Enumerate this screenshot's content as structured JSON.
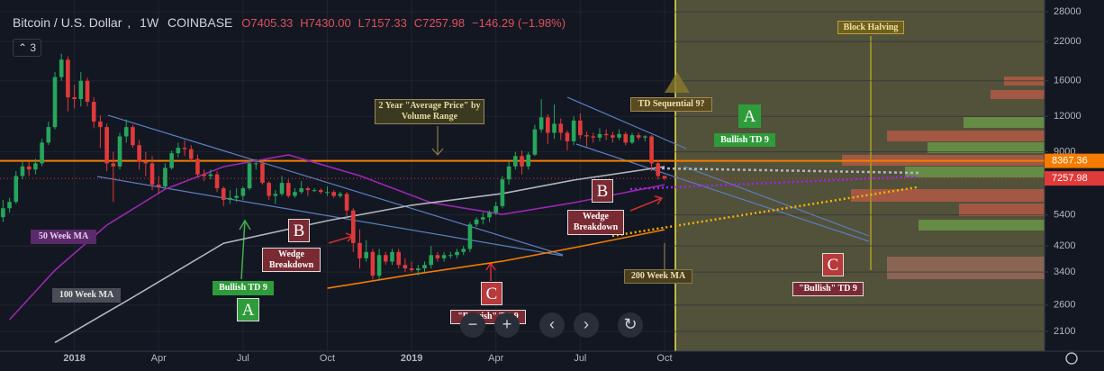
{
  "chart_data": {
    "type": "candlestick",
    "title": "Bitcoin / U.S. Dollar",
    "interval": "1W",
    "exchange": "COINBASE",
    "legend_values": [
      "O7405.33",
      "H7430.00",
      "L7157.33",
      "C7257.98",
      "−146.29 (−1.98%)"
    ],
    "indicator_count": "3",
    "log_scale": true,
    "grid": true,
    "up_color": "#26a65b",
    "down_color": "#e03a3a",
    "xlim": [
      -0.47,
      160.6
    ],
    "ylim": [
      1790,
      30800
    ],
    "xticks": [
      {
        "value": 11,
        "label": "2018"
      },
      {
        "value": 24,
        "label": "Apr"
      },
      {
        "value": 37,
        "label": "Jul"
      },
      {
        "value": 50,
        "label": "Oct"
      },
      {
        "value": 63,
        "label": "2019"
      },
      {
        "value": 76,
        "label": "Apr"
      },
      {
        "value": 89,
        "label": "Jul"
      },
      {
        "value": 102,
        "label": "Oct"
      }
    ],
    "yticks": [
      2100,
      2600,
      3400,
      4200,
      5400,
      9000,
      12000,
      16000,
      22000,
      28000
    ],
    "candles": {
      "open": [
        5300,
        5700,
        6000,
        7400,
        8000,
        7800,
        8200,
        9700,
        11000,
        16500,
        19000,
        14000,
        13800,
        16000,
        13500,
        11500,
        11000,
        8200,
        8000,
        10200,
        11000,
        9500,
        8300,
        8200,
        6900,
        6800,
        7900,
        8900,
        9300,
        9200,
        8500,
        7500,
        7400,
        7500,
        6700,
        6100,
        6200,
        6300,
        6700,
        8200,
        8200,
        7000,
        6300,
        6400,
        7000,
        6300,
        6500,
        6700,
        6600,
        6600,
        6500,
        6500,
        6300,
        6400,
        5600,
        4300,
        3800,
        4000,
        3300,
        3900,
        3700,
        4000,
        3600,
        3500,
        3450,
        3500,
        3600,
        3900,
        3800,
        3900,
        3900,
        4000,
        4100,
        5000,
        5200,
        5300,
        5500,
        5800,
        7200,
        8000,
        8700,
        8000,
        8800,
        10800,
        11900,
        10500,
        11300,
        10500,
        9800,
        11600,
        10300,
        10200,
        10100,
        10400,
        10300,
        10100,
        10400,
        9700,
        10300,
        10100,
        10200,
        8200,
        7405.33
      ],
      "high": [
        6100,
        6200,
        7700,
        8300,
        8300,
        8500,
        10000,
        11500,
        17200,
        19900,
        19500,
        15500,
        17200,
        16400,
        14000,
        12100,
        11300,
        9000,
        10500,
        11700,
        11200,
        9900,
        9000,
        8700,
        7400,
        8200,
        9100,
        9700,
        9900,
        9500,
        8800,
        7800,
        7800,
        7700,
        6800,
        6600,
        6700,
        6800,
        8400,
        8500,
        8300,
        7100,
        6600,
        7400,
        7200,
        6700,
        7100,
        6800,
        6700,
        6700,
        6800,
        6600,
        6500,
        6500,
        5700,
        4800,
        4400,
        4100,
        4100,
        4000,
        4100,
        4100,
        3800,
        3700,
        3600,
        3700,
        4200,
        4000,
        4000,
        4000,
        4100,
        4200,
        5100,
        5300,
        5500,
        5600,
        6000,
        7400,
        8300,
        9000,
        9100,
        9000,
        11200,
        13800,
        12200,
        13200,
        11800,
        10700,
        12000,
        12300,
        10600,
        10500,
        10900,
        10800,
        10600,
        10800,
        10600,
        10500,
        10500,
        10300,
        10300,
        8400,
        7430
      ],
      "low": [
        5100,
        5500,
        5900,
        7200,
        7400,
        7500,
        8000,
        9500,
        10800,
        16000,
        12500,
        12800,
        13000,
        13000,
        10900,
        9300,
        7700,
        6000,
        7800,
        9700,
        9300,
        7800,
        7400,
        6600,
        6400,
        6700,
        7800,
        8600,
        8700,
        8300,
        7300,
        7100,
        7200,
        6500,
        5800,
        5900,
        6000,
        6100,
        6600,
        7800,
        6900,
        6100,
        5900,
        6300,
        6200,
        6200,
        6400,
        6300,
        6500,
        6400,
        6300,
        6200,
        6200,
        5300,
        4000,
        3500,
        3700,
        3200,
        3200,
        3600,
        3600,
        3500,
        3400,
        3400,
        3300,
        3400,
        3500,
        3700,
        3700,
        3800,
        3800,
        3900,
        4000,
        4900,
        5000,
        5100,
        5400,
        5700,
        6900,
        7800,
        7500,
        7800,
        8700,
        10500,
        9600,
        10000,
        9900,
        9100,
        9500,
        10000,
        9400,
        9700,
        9800,
        9900,
        9700,
        9900,
        9500,
        9600,
        9900,
        9800,
        7700,
        7200,
        7157.33
      ],
      "close": [
        5700,
        6000,
        7400,
        8000,
        7800,
        8200,
        9700,
        11000,
        16500,
        19000,
        14000,
        13800,
        16000,
        13500,
        11500,
        11000,
        8200,
        8000,
        10200,
        11000,
        9500,
        8300,
        8200,
        6900,
        6800,
        7900,
        8900,
        9300,
        9200,
        8500,
        7500,
        7400,
        7500,
        6700,
        6100,
        6200,
        6300,
        6700,
        8200,
        8200,
        7000,
        6300,
        6400,
        7000,
        6300,
        6500,
        6700,
        6600,
        6600,
        6500,
        6500,
        6300,
        6400,
        5600,
        4300,
        3800,
        4000,
        3300,
        3900,
        3700,
        4000,
        3600,
        3500,
        3450,
        3500,
        3600,
        3900,
        3800,
        3900,
        3900,
        4000,
        4100,
        5000,
        5200,
        5300,
        5500,
        5800,
        7200,
        8000,
        8700,
        8000,
        8800,
        10800,
        11900,
        10500,
        11300,
        10500,
        9800,
        11600,
        10300,
        10200,
        10100,
        10400,
        10300,
        10100,
        10400,
        9700,
        10300,
        10100,
        10200,
        8200,
        7400,
        7257.98
      ]
    },
    "series": [
      {
        "name": "50 Week MA",
        "color": "#9c27b0",
        "x": [
          1,
          8,
          16,
          25,
          34,
          44,
          55,
          66,
          77,
          88,
          102
        ],
        "values": [
          2310,
          3450,
          4970,
          6650,
          7980,
          8780,
          7420,
          5960,
          5420,
          5960,
          6900
        ]
      },
      {
        "name": "100 Week MA",
        "color": "#b2b5be",
        "x": [
          8,
          20,
          34,
          50,
          63,
          77,
          88,
          102
        ],
        "values": [
          1920,
          2770,
          4290,
          5150,
          5840,
          6420,
          7160,
          7980
        ]
      },
      {
        "name": "200 Week MA",
        "color": "#f57c00",
        "x": [
          50,
          63,
          77,
          88,
          102
        ],
        "values": [
          2980,
          3330,
          3710,
          4140,
          4790
        ]
      }
    ],
    "price_lines": [
      {
        "value": 8367.36,
        "color": "#f57c00"
      },
      {
        "value": 7257.98,
        "color": "#e03a3a"
      }
    ],
    "annotations": {
      "block_halving": "Block Halving",
      "avg_price": "2 Year \"Average Price\" by Volume Range",
      "td_seq": "TD Sequential 9?",
      "a_top": "A",
      "bullish_td_top": "Bullish TD 9",
      "b_right": "B",
      "wedge_right": "Wedge Breakdown",
      "b_left": "B",
      "wedge_left": "Wedge Breakdown",
      "c_left": "C",
      "bearish_td": "\"Bearish\" TD 9",
      "c_right": "C",
      "bullish_td_right": "\"Bullish\" TD 9",
      "bullish_td_left": "Bullish TD 9",
      "a_left": "A",
      "ma50": "50 Week MA",
      "ma100": "100 Week MA",
      "ma200": "200 Week MA"
    },
    "toolbar": [
      "−",
      "+",
      "‹",
      "›",
      "↻"
    ]
  }
}
